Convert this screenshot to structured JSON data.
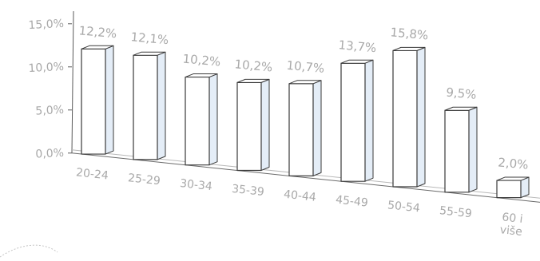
{
  "chart_data": {
    "type": "bar",
    "title": "",
    "xlabel": "",
    "ylabel": "",
    "ylim": [
      0,
      15
    ],
    "y_ticks": [
      "0,0%",
      "5,0%",
      "10,0%",
      "15,0%"
    ],
    "categories": [
      "20-24",
      "25-29",
      "30-34",
      "35-39",
      "40-44",
      "45-49",
      "50-54",
      "55-59",
      "60 i više"
    ],
    "values": [
      12.2,
      12.1,
      10.2,
      10.2,
      10.7,
      13.7,
      15.8,
      9.5,
      2.0
    ],
    "data_labels": [
      "12,2%",
      "12,1%",
      "10,2%",
      "10,2%",
      "10,7%",
      "13,7%",
      "15,8%",
      "9,5%",
      "2,0%"
    ],
    "grid": false,
    "legend": "none",
    "style": "3d-column",
    "colors": {
      "bar_face": "#ffffff",
      "bar_side": "#e4edf7",
      "outline": "#3a3a3a",
      "text": "#a9a9a9"
    }
  }
}
